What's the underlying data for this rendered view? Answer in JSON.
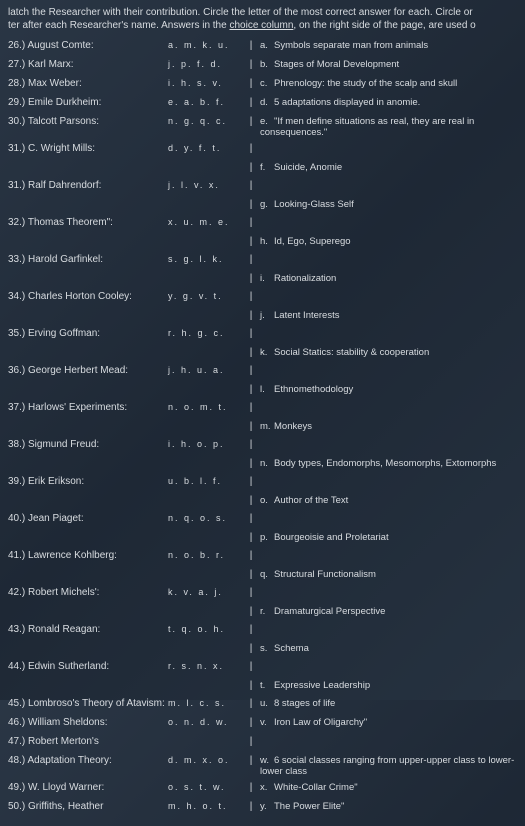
{
  "instructions_line1": "latch the Researcher with their contribution. Circle the letter of the most correct answer for each. Circle or",
  "instructions_line2_a": "ter after each Researcher's name. Answers in the ",
  "instructions_line2_b": "choice column",
  "instructions_line2_c": ", on the right side of the page, are used o",
  "rows": [
    {
      "num": "26.)",
      "name": "August Comte:",
      "letters": "a. m. k. u.",
      "lbl": "a.",
      "ans": "Symbols separate man from animals"
    },
    {
      "num": "27.)",
      "name": "Karl Marx:",
      "letters": "j. p. f. d.",
      "lbl": "b.",
      "ans": "Stages of Moral Development"
    },
    {
      "num": "28.)",
      "name": "Max Weber:",
      "letters": "i. h. s. v.",
      "lbl": "c.",
      "ans": "Phrenology: the study of the scalp and skull"
    },
    {
      "num": "29.)",
      "name": "Emile Durkheim:",
      "letters": "e. a. b. f.",
      "lbl": "d.",
      "ans": "5 adaptations displayed in anomie."
    },
    {
      "num": "30.)",
      "name": "Talcott Parsons:",
      "letters": "n. g. q. c.",
      "lbl": "e.",
      "ans": "\"If men define situations as real, they are real in consequences.\""
    },
    {
      "num": "31.)",
      "name": "C. Wright Mills:",
      "letters": "d. y. f. t.",
      "lbl": "",
      "ans": ""
    },
    {
      "num": "",
      "name": "",
      "letters": "",
      "lbl": "f.",
      "ans": "Suicide, Anomie"
    },
    {
      "num": "31.)",
      "name": "Ralf Dahrendorf:",
      "letters": "j. l. v. x.",
      "lbl": "",
      "ans": ""
    },
    {
      "num": "",
      "name": "",
      "letters": "",
      "lbl": "g.",
      "ans": "Looking-Glass Self"
    },
    {
      "num": "32.)",
      "name": "Thomas Theorem\":",
      "letters": "x. u. m. e.",
      "lbl": "",
      "ans": ""
    },
    {
      "num": "",
      "name": "",
      "letters": "",
      "lbl": "h.",
      "ans": "Id, Ego, Superego"
    },
    {
      "num": "33.)",
      "name": "Harold Garfinkel:",
      "letters": "s. g. l. k.",
      "lbl": "",
      "ans": ""
    },
    {
      "num": "",
      "name": "",
      "letters": "",
      "lbl": "i.",
      "ans": "Rationalization"
    },
    {
      "num": "34.)",
      "name": "Charles Horton Cooley:",
      "letters": "y. g. v. t.",
      "lbl": "",
      "ans": ""
    },
    {
      "num": "",
      "name": "",
      "letters": "",
      "lbl": "j.",
      "ans": "Latent Interests"
    },
    {
      "num": "35.)",
      "name": "Erving Goffman:",
      "letters": "r. h. g. c.",
      "lbl": "",
      "ans": ""
    },
    {
      "num": "",
      "name": "",
      "letters": "",
      "lbl": "k.",
      "ans": "Social Statics: stability & cooperation"
    },
    {
      "num": "36.)",
      "name": "George Herbert Mead:",
      "letters": "j. h. u. a.",
      "lbl": "",
      "ans": ""
    },
    {
      "num": "",
      "name": "",
      "letters": "",
      "lbl": "l.",
      "ans": "Ethnomethodology"
    },
    {
      "num": "37.)",
      "name": "Harlows' Experiments:",
      "letters": "n. o. m. t.",
      "lbl": "",
      "ans": ""
    },
    {
      "num": "",
      "name": "",
      "letters": "",
      "lbl": "m.",
      "ans": "Monkeys"
    },
    {
      "num": "38.)",
      "name": "Sigmund Freud:",
      "letters": "i. h. o. p.",
      "lbl": "",
      "ans": ""
    },
    {
      "num": "",
      "name": "",
      "letters": "",
      "lbl": "n.",
      "ans": "Body types, Endomorphs, Mesomorphs, Extomorphs"
    },
    {
      "num": "39.)",
      "name": "Erik Erikson:",
      "letters": "u. b. l. f.",
      "lbl": "",
      "ans": ""
    },
    {
      "num": "",
      "name": "",
      "letters": "",
      "lbl": "o.",
      "ans": "Author of the Text"
    },
    {
      "num": "40.)",
      "name": "Jean Piaget:",
      "letters": "n. q. o. s.",
      "lbl": "",
      "ans": ""
    },
    {
      "num": "",
      "name": "",
      "letters": "",
      "lbl": "p.",
      "ans": "Bourgeoisie and Proletariat"
    },
    {
      "num": "41.)",
      "name": "Lawrence Kohlberg:",
      "letters": "n. o. b. r.",
      "lbl": "",
      "ans": ""
    },
    {
      "num": "",
      "name": "",
      "letters": "",
      "lbl": "q.",
      "ans": "Structural Functionalism"
    },
    {
      "num": "42.)",
      "name": "Robert Michels':",
      "letters": "k. v. a. j.",
      "lbl": "",
      "ans": ""
    },
    {
      "num": "",
      "name": "",
      "letters": "",
      "lbl": "r.",
      "ans": "Dramaturgical Perspective"
    },
    {
      "num": "43.)",
      "name": "Ronald Reagan:",
      "letters": "t. q. o. h.",
      "lbl": "",
      "ans": ""
    },
    {
      "num": "",
      "name": "",
      "letters": "",
      "lbl": "s.",
      "ans": "Schema"
    },
    {
      "num": "44.)",
      "name": "Edwin Sutherland:",
      "letters": "r. s. n. x.",
      "lbl": "",
      "ans": ""
    },
    {
      "num": "",
      "name": "",
      "letters": "",
      "lbl": "t.",
      "ans": "Expressive Leadership"
    },
    {
      "num": "45.)",
      "name": "Lombroso's Theory of Atavism:",
      "letters": "m. l. c. s.",
      "lbl": "u.",
      "ans": "8 stages of life"
    },
    {
      "num": "46.)",
      "name": "William Sheldons:",
      "letters": "o. n. d. w.",
      "lbl": "v.",
      "ans": "Iron Law of Oligarchy\""
    },
    {
      "num": "47.)",
      "name": "Robert Merton's",
      "letters": "",
      "lbl": "",
      "ans": ""
    },
    {
      "num": "48.)",
      "name": "Adaptation Theory:",
      "letters": "d. m. x. o.",
      "lbl": "w.",
      "ans": "6 social classes ranging from upper-upper class to lower-lower class"
    },
    {
      "num": "49.)",
      "name": "W. Lloyd Warner:",
      "letters": "o. s. t. w.",
      "lbl": "x.",
      "ans": "White-Collar Crime\""
    },
    {
      "num": "50.)",
      "name": "Griffiths, Heather",
      "letters": "m. h. o. t.",
      "lbl": "y.",
      "ans": "The Power Elite\""
    }
  ]
}
